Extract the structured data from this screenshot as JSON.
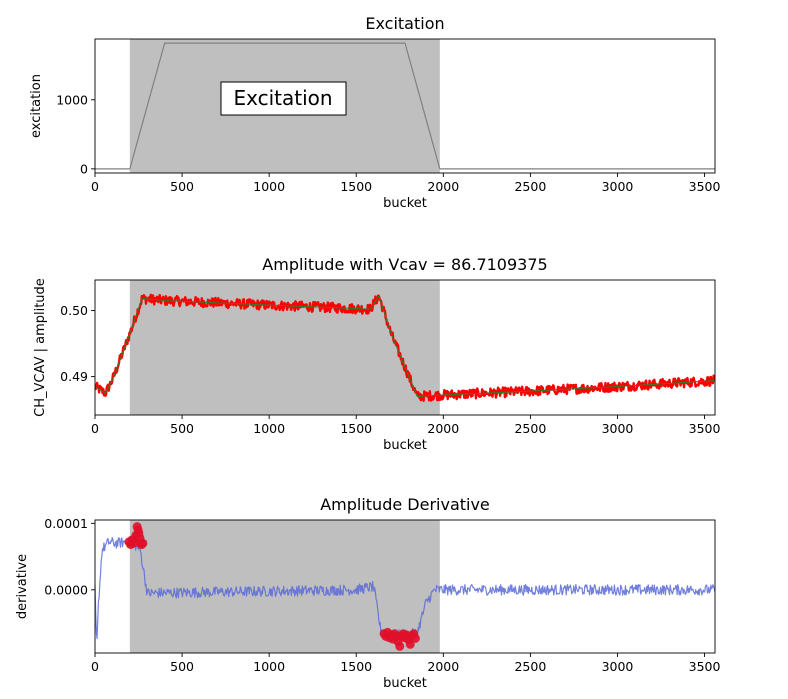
{
  "chart_data": [
    {
      "type": "line",
      "title": "Excitation",
      "xlabel": "bucket",
      "ylabel": "excitation",
      "xlim": [
        0,
        3560
      ],
      "ylim": [
        -60,
        1880
      ],
      "xticks": [
        0,
        500,
        1000,
        1500,
        2000,
        2500,
        3000,
        3500
      ],
      "yticks": [
        0,
        1000
      ],
      "yticklabels": [
        "0",
        "1000"
      ],
      "shaded_region": [
        200,
        1980
      ],
      "annotation": "Excitation",
      "series": [
        {
          "x": [
            0,
            200,
            400,
            1780,
            1980,
            3560
          ],
          "y": [
            0,
            0,
            1820,
            1820,
            0,
            0
          ],
          "color": "#808080"
        }
      ]
    },
    {
      "type": "line",
      "title": "Amplitude with Vcav = 86.7109375",
      "xlabel": "bucket",
      "ylabel": "CH_VCAV | amplitude",
      "xlim": [
        0,
        3560
      ],
      "ylim": [
        0.4842,
        0.5046
      ],
      "xticks": [
        0,
        500,
        1000,
        1500,
        2000,
        2500,
        3000,
        3500
      ],
      "yticks": [
        0.49,
        0.5
      ],
      "yticklabels": [
        "0.49",
        "0.50"
      ],
      "shaded_region": [
        200,
        1980
      ],
      "series": [
        {
          "name": "",
          "color": "#ff0000",
          "noise": 0.00075,
          "x": [
            0,
            60,
            100,
            200,
            270,
            400,
            1000,
            1580,
            1630,
            1700,
            1850,
            1980,
            2500,
            3000,
            3560
          ],
          "y": [
            0.4885,
            0.4875,
            0.4895,
            0.4965,
            0.5018,
            0.5015,
            0.5008,
            0.5002,
            0.5022,
            0.4965,
            0.487,
            0.4872,
            0.4878,
            0.4885,
            0.4894
          ]
        },
        {
          "name": "",
          "color": "#2e7d32",
          "noise": 0,
          "x": [
            0,
            60,
            100,
            200,
            270,
            400,
            1000,
            1580,
            1630,
            1700,
            1850,
            1980,
            2500,
            3000,
            3560
          ],
          "y": [
            0.4885,
            0.4875,
            0.4895,
            0.4965,
            0.5018,
            0.5015,
            0.5008,
            0.5002,
            0.5022,
            0.4965,
            0.487,
            0.4872,
            0.4878,
            0.4885,
            0.4894
          ]
        }
      ]
    },
    {
      "type": "line",
      "title": "Amplitude Derivative",
      "xlabel": "bucket",
      "ylabel": "derivative",
      "xlim": [
        0,
        3560
      ],
      "ylim": [
        -9.5e-05,
        0.000105
      ],
      "xticks": [
        0,
        500,
        1000,
        1500,
        2000,
        2500,
        3000,
        3500
      ],
      "yticks": [
        0.0001,
        0.0
      ],
      "yticklabels": [
        "0.0001",
        "0.0000"
      ],
      "shaded_region": [
        200,
        1980
      ],
      "series": [
        {
          "name": "",
          "color": "#5a6ad8",
          "noise": 8e-06,
          "x": [
            0,
            10,
            20,
            40,
            80,
            120,
            180,
            220,
            260,
            300,
            1500,
            1600,
            1640,
            1680,
            1720,
            1800,
            1850,
            1900,
            1950,
            2100,
            3560
          ],
          "y": [
            0.0,
            -9e-05,
            -2e-05,
            6e-05,
            7.2e-05,
            7e-05,
            7.2e-05,
            7e-05,
            6e-05,
            -5e-06,
            0.0,
            5e-06,
            -6e-05,
            -6.5e-05,
            -6.8e-05,
            -6.7e-05,
            -6.5e-05,
            -2e-05,
            0.0,
            0.0,
            0.0
          ]
        }
      ],
      "highlight_points": {
        "color": "#e0102a",
        "x": [
          195,
          205,
          212,
          220,
          228,
          235,
          242,
          248,
          252,
          258,
          262,
          268,
          275,
          1660,
          1670,
          1680,
          1690,
          1700,
          1710,
          1720,
          1730,
          1740,
          1750,
          1760,
          1770,
          1780,
          1790,
          1800,
          1810,
          1820,
          1830,
          1840
        ],
        "y": [
          7.2e-05,
          6.8e-05,
          7.5e-05,
          7e-05,
          7.7e-05,
          8.2e-05,
          9.5e-05,
          9e-05,
          8.5e-05,
          7.8e-05,
          7e-05,
          6.8e-05,
          7e-05,
          -6.6e-05,
          -7e-05,
          -6.4e-05,
          -7.2e-05,
          -6.8e-05,
          -7.4e-05,
          -6.6e-05,
          -7e-05,
          -7.8e-05,
          -8.5e-05,
          -7e-05,
          -6.6e-05,
          -7.2e-05,
          -6.8e-05,
          -7.5e-05,
          -8.2e-05,
          -6.9e-05,
          -6.6e-05,
          -7.3e-05
        ]
      }
    }
  ]
}
